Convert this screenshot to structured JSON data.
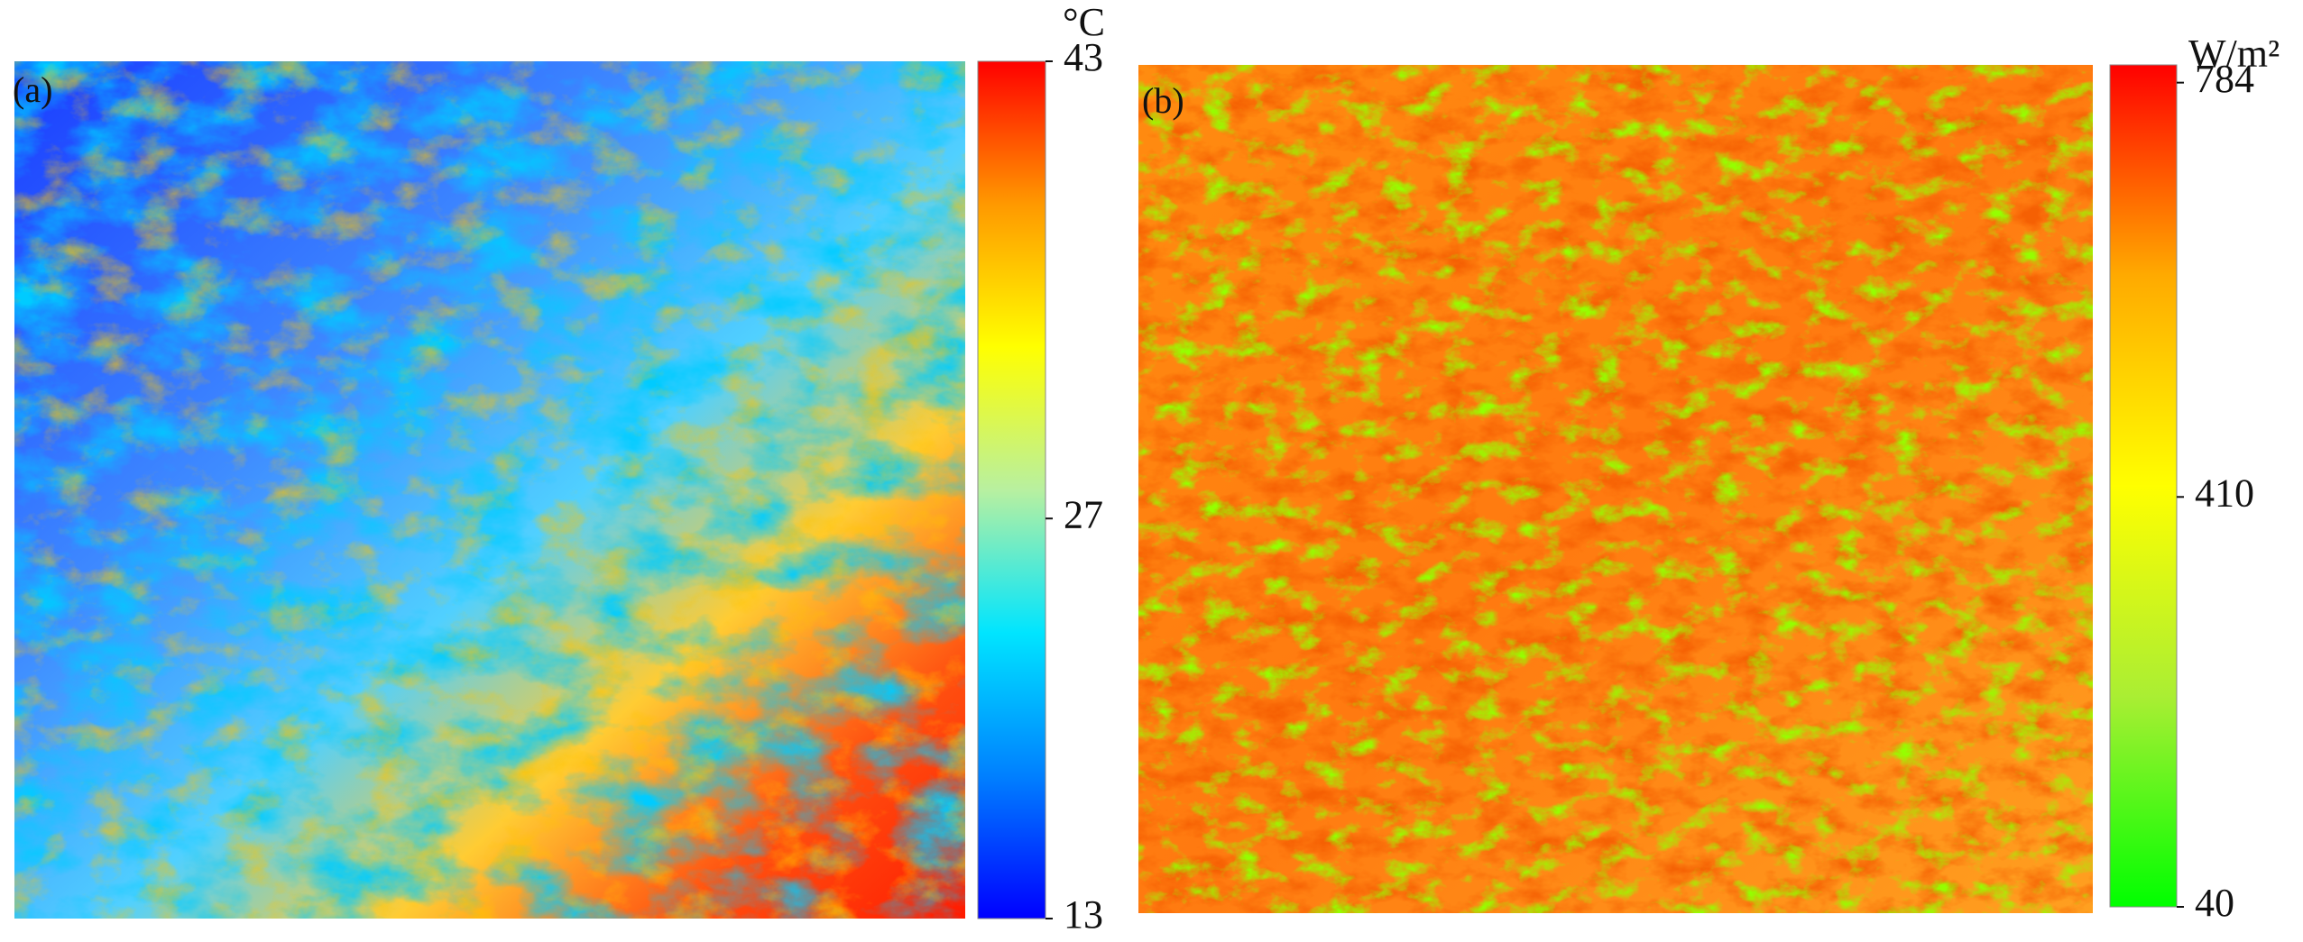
{
  "panels": [
    {
      "label": "(a)",
      "unit": "°C",
      "colorbar": {
        "range": [
          13,
          43
        ],
        "ticks": [
          13,
          27,
          43
        ],
        "colormap": [
          "#0000ff",
          "#0080ff",
          "#00e5ff",
          "#b8f0a0",
          "#ffff00",
          "#ff9900",
          "#ff0000"
        ]
      }
    },
    {
      "label": "(b)",
      "unit": "W/m²",
      "colorbar": {
        "range": [
          40,
          800
        ],
        "ticks": [
          40,
          410,
          784
        ],
        "colormap": [
          "#00ff00",
          "#aaee33",
          "#ffff00",
          "#ffaa00",
          "#ff0000"
        ]
      }
    }
  ]
}
